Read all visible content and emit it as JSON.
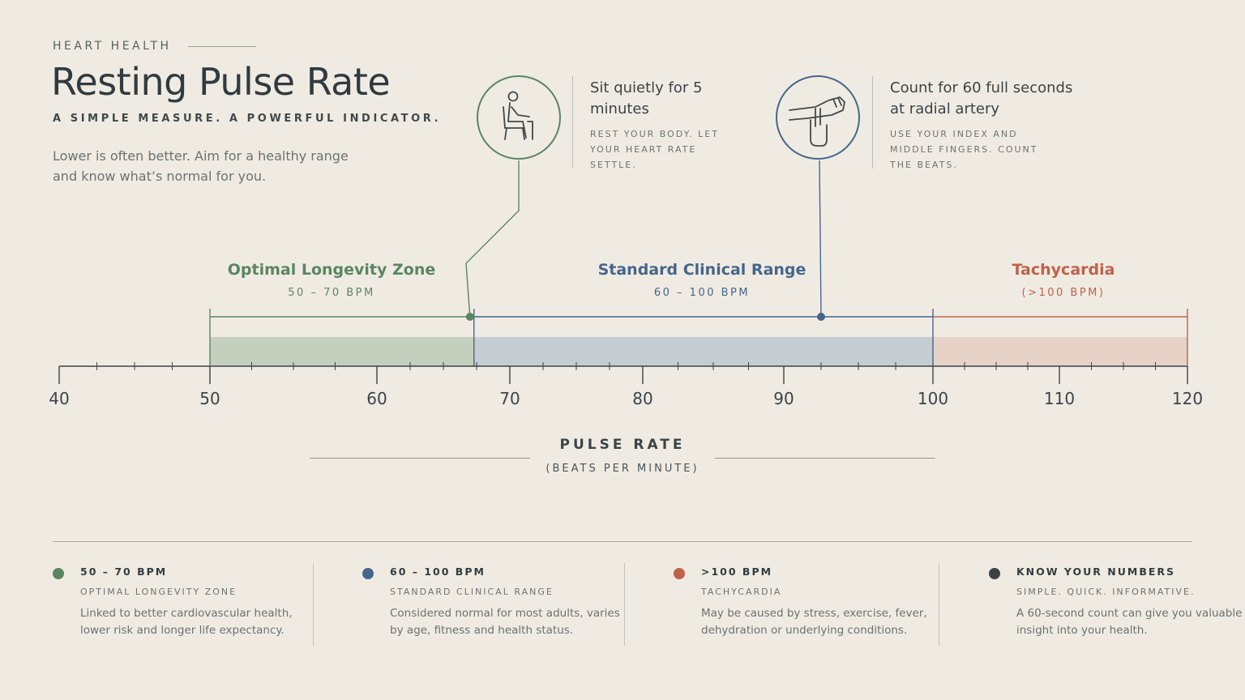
{
  "header": {
    "eyebrow": "HEART HEALTH",
    "title": "Resting Pulse Rate",
    "subtitle": "A SIMPLE MEASURE. A POWERFUL INDICATOR.",
    "intro": "Lower is often better. Aim for a healthy range and know what’s normal for you."
  },
  "steps": [
    {
      "title": "Sit quietly for 5 minutes",
      "desc": "REST YOUR BODY. LET YOUR HEART RATE SETTLE.",
      "icon": "seated-person-icon",
      "pointer_bpm": 67,
      "color": "#5a8563"
    },
    {
      "title": "Count for 60 full seconds at radial artery",
      "desc": "USE YOUR INDEX AND MIDDLE FINGERS. COUNT THE BEATS.",
      "icon": "wrist-pulse-icon",
      "pointer_bpm": 92.5,
      "color": "#45668c"
    }
  ],
  "colors": {
    "green": "#5a8563",
    "blue": "#45668c",
    "red": "#c0614a",
    "dark": "#3a4448"
  },
  "chart_data": {
    "type": "range-diagram",
    "xlabel": "PULSE RATE",
    "xlabel_sub": "(BEATS PER MINUTE)",
    "ticks": [
      40,
      50,
      60,
      70,
      80,
      90,
      100,
      110,
      120
    ],
    "zones": [
      {
        "name": "Optimal Longevity Zone",
        "range_label": "50 – 70 BPM",
        "from": 50,
        "to": 70,
        "color": "#5a8563"
      },
      {
        "name": "Standard Clinical Range",
        "range_label": "60 – 100 BPM",
        "from": 60,
        "to": 100,
        "color": "#45668c"
      },
      {
        "name": "Tachycardia",
        "range_label": "(>100 BPM)",
        "from": 100,
        "to": 120,
        "color": "#c0614a"
      }
    ]
  },
  "legend": [
    {
      "head": "50 – 70 BPM",
      "sub": "OPTIMAL LONGEVITY ZONE",
      "desc": "Linked to better cardiovascular health, lower risk and longer life expectancy.",
      "color": "#5a8563"
    },
    {
      "head": "60 – 100 BPM",
      "sub": "STANDARD CLINICAL RANGE",
      "desc": "Considered normal for most adults, varies by age, fitness and health status.",
      "color": "#45668c"
    },
    {
      "head": ">100 BPM",
      "sub": "TACHYCARDIA",
      "desc": "May be caused by stress, exercise, fever, dehydration or underlying conditions.",
      "color": "#c0614a"
    },
    {
      "head": "KNOW YOUR NUMBERS",
      "sub": "SIMPLE. QUICK. INFORMATIVE.",
      "desc": "A 60-second count can give you valuable insight into your health.",
      "color": "#3a4448"
    }
  ]
}
